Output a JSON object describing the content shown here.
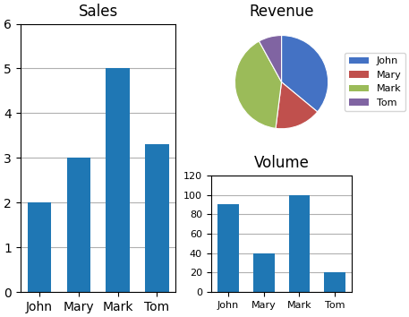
{
  "chart_data": [
    {
      "type": "bar",
      "title": "Sales",
      "categories": [
        "John",
        "Mary",
        "Mark",
        "Tom"
      ],
      "values": [
        2,
        3,
        5,
        3.3
      ],
      "ylim": [
        0,
        6
      ],
      "yticks": [
        0,
        1,
        2,
        3,
        4,
        5,
        6
      ],
      "grid": true
    },
    {
      "type": "pie",
      "title": "Revenue",
      "categories": [
        "John",
        "Mary",
        "Mark",
        "Tom"
      ],
      "values": [
        90,
        40,
        100,
        20
      ],
      "colors": [
        "#4472C4",
        "#C0504D",
        "#9BBB59",
        "#8064A2"
      ],
      "legend": "center left"
    },
    {
      "type": "bar",
      "title": "Volume",
      "categories": [
        "John",
        "Mary",
        "Mark",
        "Tom"
      ],
      "values": [
        90,
        40,
        100,
        20
      ],
      "ylim": [
        0,
        120
      ],
      "yticks": [
        0,
        20,
        40,
        60,
        80,
        100,
        120
      ],
      "grid": true
    }
  ]
}
